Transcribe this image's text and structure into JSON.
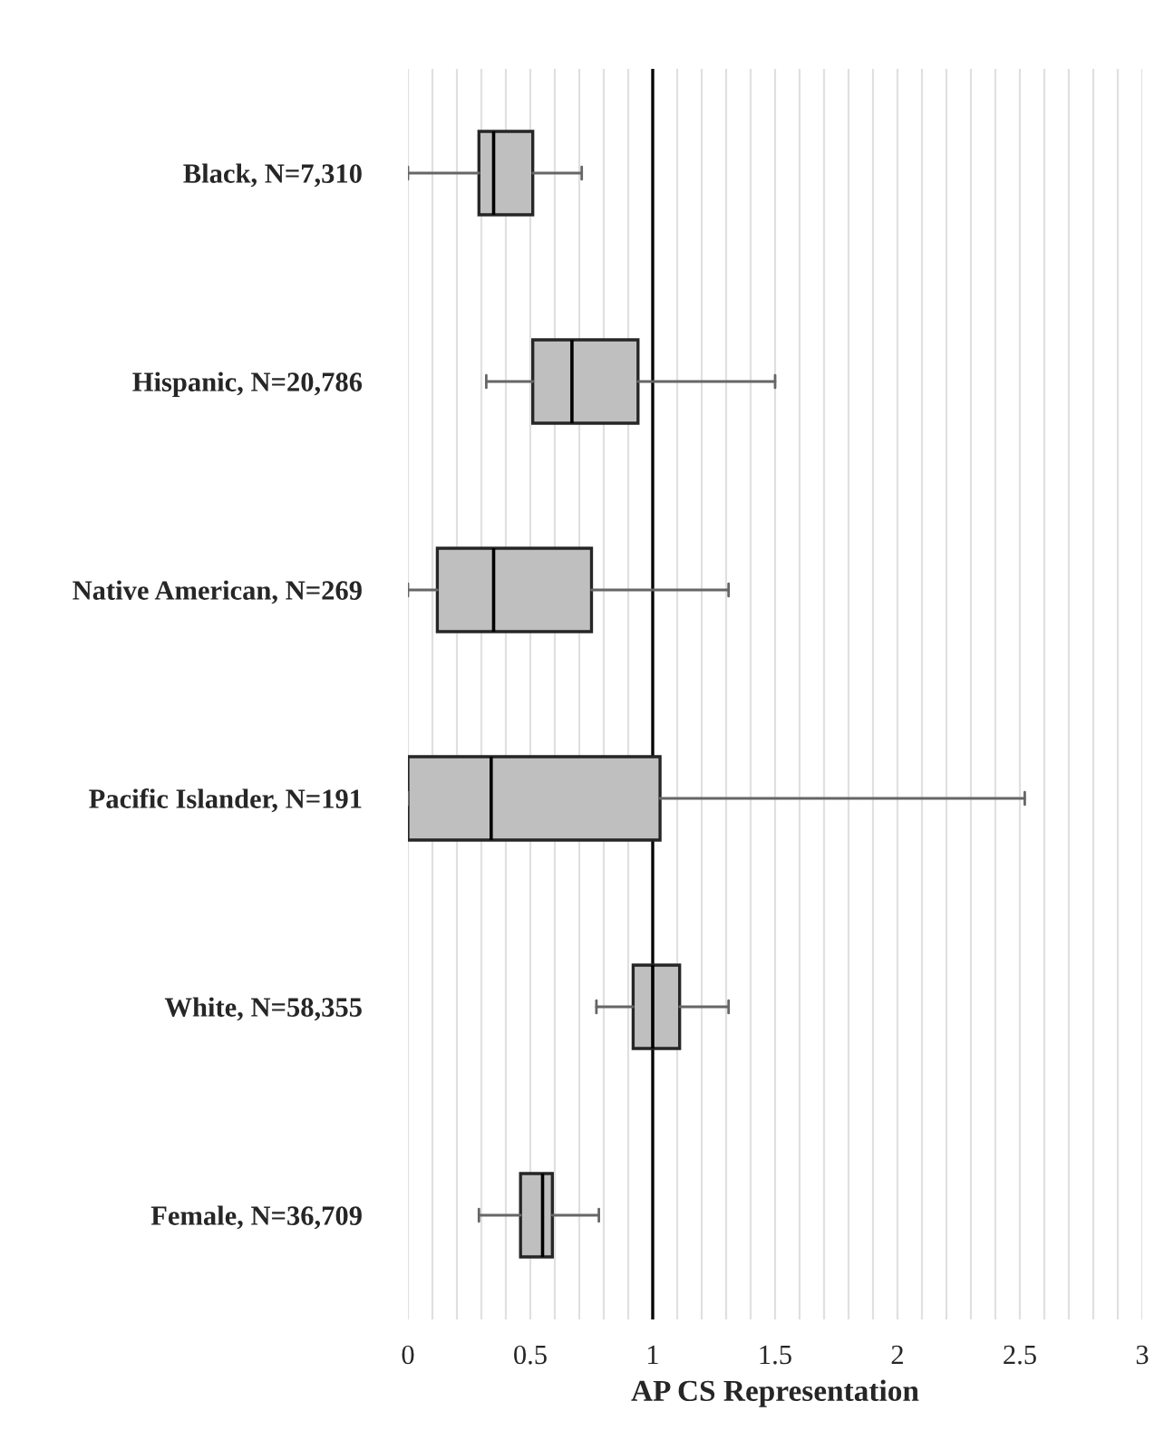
{
  "chart_data": {
    "type": "box",
    "orientation": "horizontal",
    "xlabel": "AP CS Representation",
    "categories": [
      "Black, N=7,310",
      "Hispanic, N=20,786",
      "Native American, N=269",
      "Pacific Islander, N=191",
      "White, N=58,355",
      "Female, N=36,709"
    ],
    "color": "#bfbfbf",
    "boxes": [
      {
        "low": 0,
        "q1": 0.29,
        "median": 0.35,
        "q3": 0.51,
        "high": 0.71
      },
      {
        "low": 0.32,
        "q1": 0.51,
        "median": 0.67,
        "q3": 0.94,
        "high": 1.5
      },
      {
        "low": 0,
        "q1": 0.12,
        "median": 0.35,
        "q3": 0.75,
        "high": 1.31
      },
      {
        "low": 0,
        "q1": 0,
        "median": 0.34,
        "q3": 1.03,
        "high": 2.52
      },
      {
        "low": 0.77,
        "q1": 0.92,
        "median": 1.0,
        "q3": 1.11,
        "high": 1.31
      },
      {
        "low": 0.29,
        "q1": 0.46,
        "median": 0.55,
        "q3": 0.59,
        "high": 0.78
      }
    ],
    "xlim": [
      0,
      3
    ],
    "xticks": [
      0,
      {
        "value": 0.1,
        "label": null
      },
      {
        "value": 0.2,
        "label": null
      },
      {
        "value": 0.3,
        "label": null
      },
      {
        "value": 0.4,
        "label": null
      },
      0.5,
      {
        "value": 0.6,
        "label": null
      },
      {
        "value": 0.7,
        "label": null
      },
      {
        "value": 0.8,
        "label": null
      },
      {
        "value": 0.9,
        "label": null
      },
      1,
      {
        "value": 1.1,
        "label": null
      },
      {
        "value": 1.2,
        "label": null
      },
      {
        "value": 1.3,
        "label": null
      },
      {
        "value": 1.4,
        "label": null
      },
      1.5,
      {
        "value": 1.6,
        "label": null
      },
      {
        "value": 1.7,
        "label": null
      },
      {
        "value": 1.8,
        "label": null
      },
      {
        "value": 1.9,
        "label": null
      },
      2,
      {
        "value": 2.1,
        "label": null
      },
      {
        "value": 2.2,
        "label": null
      },
      {
        "value": 2.3,
        "label": null
      },
      {
        "value": 2.4,
        "label": null
      },
      2.5,
      {
        "value": 2.6,
        "label": null
      },
      {
        "value": 2.7,
        "label": null
      },
      {
        "value": 2.8,
        "label": null
      },
      {
        "value": 2.9,
        "label": null
      },
      3
    ],
    "grid": "x",
    "ref_lines": [
      {
        "axis": "x",
        "value": 1,
        "color": "#000000"
      }
    ]
  }
}
